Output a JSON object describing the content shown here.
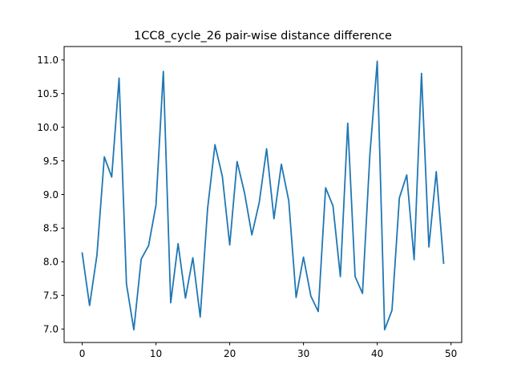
{
  "chart_data": {
    "type": "line",
    "title": "1CC8_cycle_26 pair-wise distance difference",
    "xlabel": "",
    "ylabel": "",
    "xlim": [
      -2.45,
      51.45
    ],
    "ylim": [
      6.8,
      11.2
    ],
    "xticks": [
      0,
      10,
      20,
      30,
      40,
      50
    ],
    "xtick_labels": [
      "0",
      "10",
      "20",
      "30",
      "40",
      "50"
    ],
    "yticks": [
      7.0,
      7.5,
      8.0,
      8.5,
      9.0,
      9.5,
      10.0,
      10.5,
      11.0
    ],
    "ytick_labels": [
      "7.0",
      "7.5",
      "8.0",
      "8.5",
      "9.0",
      "9.5",
      "10.0",
      "10.5",
      "11.0"
    ],
    "grid": false,
    "series": [
      {
        "color": "#1f77b4",
        "x": [
          0,
          1,
          2,
          3,
          4,
          5,
          6,
          7,
          8,
          9,
          10,
          11,
          12,
          13,
          14,
          15,
          16,
          17,
          18,
          19,
          20,
          21,
          22,
          23,
          24,
          25,
          26,
          27,
          28,
          29,
          30,
          31,
          32,
          33,
          34,
          35,
          36,
          37,
          38,
          39,
          40,
          41,
          42,
          43,
          44,
          45,
          46,
          47,
          48,
          49
        ],
        "values": [
          8.13,
          7.35,
          8.1,
          9.56,
          9.26,
          10.73,
          7.67,
          6.99,
          8.04,
          8.24,
          8.84,
          10.83,
          7.39,
          8.27,
          7.46,
          8.06,
          7.18,
          8.79,
          9.74,
          9.27,
          8.25,
          9.49,
          9.03,
          8.4,
          8.88,
          9.68,
          8.64,
          9.45,
          8.91,
          7.47,
          8.07,
          7.49,
          7.26,
          9.1,
          8.83,
          7.78,
          10.06,
          7.78,
          7.53,
          9.59,
          10.98,
          6.99,
          7.28,
          8.95,
          9.29,
          8.03,
          10.8,
          8.22,
          9.34,
          7.98
        ]
      }
    ]
  }
}
